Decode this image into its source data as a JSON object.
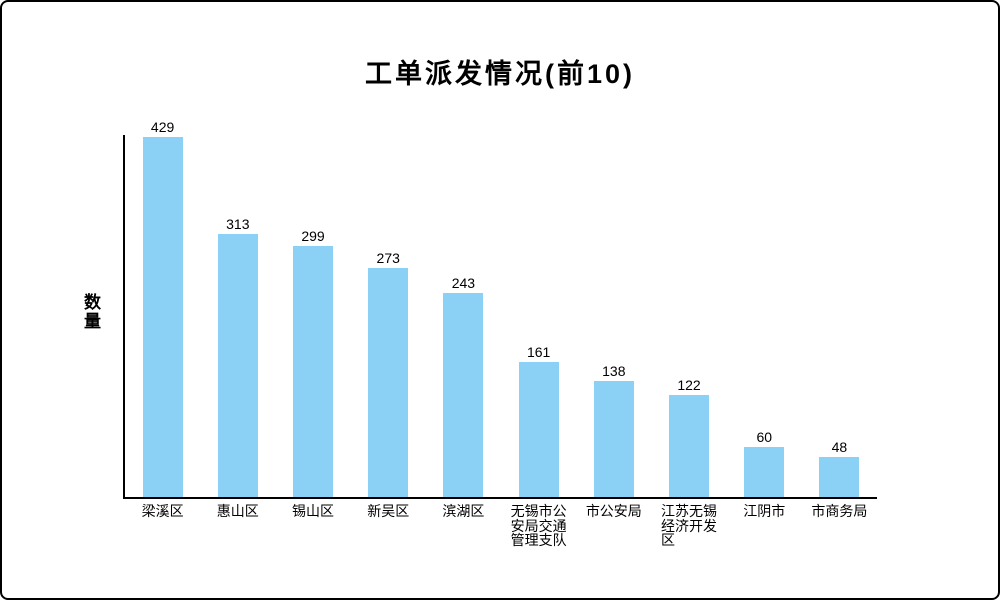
{
  "chart_data": {
    "type": "bar",
    "title": "工单派发情况(前10)",
    "xlabel": "",
    "ylabel": "数量",
    "categories": [
      "梁溪区",
      "惠山区",
      "锡山区",
      "新吴区",
      "滨湖区",
      "无锡市公安局交通管理支队",
      "市公安局",
      "江苏无锡经济开发区",
      "江阴市",
      "市商务局"
    ],
    "category_labels": [
      "梁溪区",
      "惠山区",
      "锡山区",
      "新吴区",
      "滨湖区",
      "无锡市公\n安局交通\n管理支队",
      "市公安局",
      "江苏无锡\n经济开发\n区",
      "江阴市",
      "市商务局"
    ],
    "values": [
      429,
      313,
      299,
      273,
      243,
      161,
      138,
      122,
      60,
      48
    ],
    "ylim": [
      0,
      429
    ],
    "grid": false,
    "legend": null,
    "bar_color": "#8BD0F5",
    "axis_color": "#000000",
    "text_color": "#000000"
  }
}
